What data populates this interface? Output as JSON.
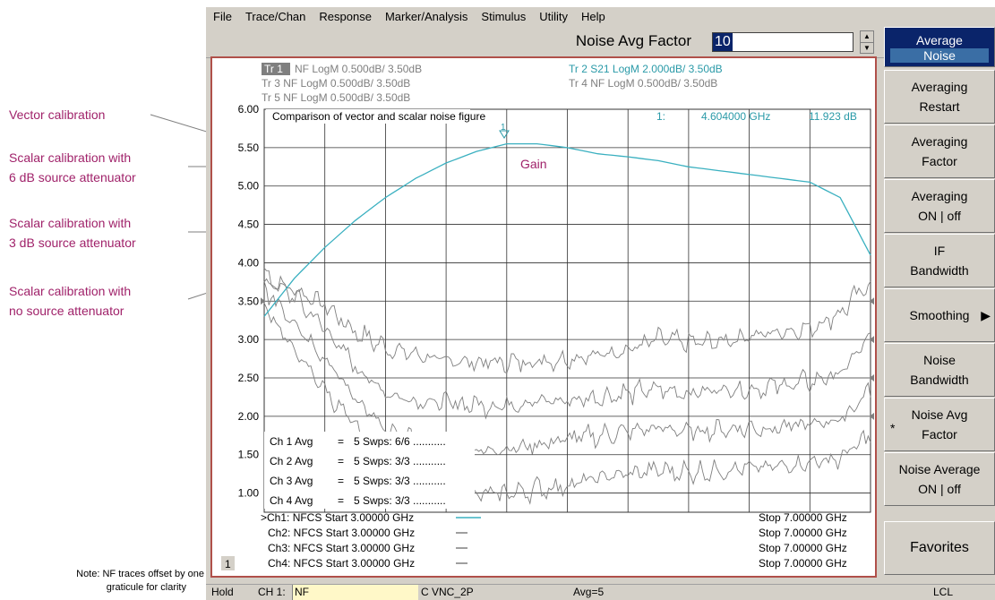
{
  "annotations": {
    "vector": "Vector calibration",
    "scalar6_line1": "Scalar calibration with",
    "scalar6_line2": "6 dB source attenuator",
    "scalar3_line1": "Scalar calibration with",
    "scalar3_line2": "3 dB source attenuator",
    "scalar0_line1": "Scalar calibration with",
    "scalar0_line2": "no source attenuator",
    "note_line1": "Note: NF traces offset by one",
    "note_line2": "graticule for clarity",
    "gain_label": "Gain"
  },
  "menu": [
    "File",
    "Trace/Chan",
    "Response",
    "Marker/Analysis",
    "Stimulus",
    "Utility",
    "Help"
  ],
  "entry": {
    "label": "Noise Avg Factor",
    "value": "10"
  },
  "traces": {
    "tr1_tag": "Tr 1",
    "tr1": "NF LogM 0.500dB/  3.50dB",
    "tr2": "Tr 2  S21 LogM 2.000dB/  3.50dB",
    "tr3": "Tr 3  NF LogM 0.500dB/  3.50dB",
    "tr4": "Tr 4  NF LogM 0.500dB/  3.50dB",
    "tr5": "Tr 5  NF LogM 0.500dB/  3.50dB"
  },
  "chart_title": "Comparison of vector and scalar noise figure",
  "marker": {
    "num": "1:",
    "freq": "4.604000 GHz",
    "value": "11.923 dB"
  },
  "averages": [
    {
      "label": "Ch 1 Avg",
      "eq": "=",
      "value": "5 Swps: 6/6 ..........."
    },
    {
      "label": "Ch 2 Avg",
      "eq": "=",
      "value": "5 Swps: 3/3 ..........."
    },
    {
      "label": "Ch 3 Avg",
      "eq": "=",
      "value": "5 Swps: 3/3 ..........."
    },
    {
      "label": "Ch 4 Avg",
      "eq": "=",
      "value": "5 Swps: 3/3 ..........."
    }
  ],
  "channels": [
    {
      "left": ">Ch1: NFCS Start  3.00000 GHz",
      "stop": "Stop  7.00000 GHz"
    },
    {
      "left": "Ch2: NFCS Start  3.00000 GHz",
      "stop": "Stop  7.00000 GHz"
    },
    {
      "left": "Ch3: NFCS Start  3.00000 GHz",
      "stop": "Stop  7.00000 GHz"
    },
    {
      "left": "Ch4: NFCS Start  3.00000 GHz",
      "stop": "Stop  7.00000 GHz"
    }
  ],
  "window_number": "1",
  "softkeys": [
    {
      "line1": "Average",
      "line2": "Noise",
      "title": true
    },
    {
      "line1": "Averaging",
      "line2": "Restart"
    },
    {
      "line1": "Averaging",
      "line2": "Factor"
    },
    {
      "line1": "Averaging",
      "line2": "ON | off"
    },
    {
      "line1": "IF",
      "line2": "Bandwidth"
    },
    {
      "line1": "Smoothing",
      "line2": ""
    },
    {
      "line1": "Noise",
      "line2": "Bandwidth"
    },
    {
      "line1": "Noise Avg",
      "line2": "Factor",
      "star": "*"
    },
    {
      "line1": "Noise Average",
      "line2": "ON | off"
    },
    {
      "line1": "Favorites",
      "line2": ""
    }
  ],
  "status": {
    "hold": "Hold",
    "ch": "CH 1:",
    "meas": "NF",
    "cal": "C  VNC_2P",
    "avg": "Avg=5",
    "lcl": "LCL"
  },
  "colors": {
    "gain_trace": "#3ab0c0",
    "nf_trace": "#7f7f7f",
    "annotation": "#a0226a",
    "frame": "#b0504a"
  },
  "chart_data": {
    "type": "line",
    "title": "Comparison of vector and scalar noise figure",
    "x_start_ghz": 3.0,
    "x_stop_ghz": 7.0,
    "y_tick_labels": [
      "6.00",
      "5.50",
      "5.00",
      "4.50",
      "4.00",
      "3.50",
      "3.00",
      "2.50",
      "2.00",
      "1.50",
      "1.00"
    ],
    "ylim": [
      0.75,
      6.0
    ],
    "grid": true,
    "series": [
      {
        "name": "Vector calibration",
        "x": [
          3.0,
          3.2,
          3.4,
          3.6,
          3.8,
          4.0,
          4.2,
          4.4,
          4.6,
          4.8,
          5.0,
          5.2,
          5.4,
          5.6,
          5.8,
          6.0,
          6.2,
          6.4,
          6.6,
          6.8,
          7.0
        ],
        "y": [
          2.0,
          1.9,
          1.7,
          1.35,
          1.15,
          1.05,
          0.98,
          0.95,
          0.95,
          0.97,
          1.0,
          1.05,
          1.12,
          1.25,
          1.2,
          1.22,
          1.3,
          1.35,
          1.4,
          1.6,
          2.0
        ],
        "offset": 1.75
      },
      {
        "name": "Scalar calibration with 6 dB source attenuator",
        "x": [
          3.0,
          3.2,
          3.4,
          3.6,
          3.8,
          4.0,
          4.2,
          4.4,
          4.6,
          4.8,
          5.0,
          5.2,
          5.4,
          5.6,
          5.8,
          6.0,
          6.2,
          6.4,
          6.6,
          6.8,
          7.0
        ],
        "y": [
          2.6,
          2.3,
          1.9,
          1.4,
          1.05,
          0.95,
          0.92,
          0.9,
          0.9,
          0.95,
          0.95,
          1.0,
          1.05,
          1.1,
          1.05,
          1.1,
          1.1,
          1.15,
          1.2,
          1.3,
          1.8
        ],
        "offset": 1.25
      },
      {
        "name": "Scalar calibration with 3 dB source attenuator",
        "x": [
          3.0,
          3.2,
          3.4,
          3.6,
          3.8,
          4.0,
          4.2,
          4.4,
          4.6,
          4.8,
          5.0,
          5.2,
          5.4,
          5.6,
          5.8,
          6.0,
          6.2,
          6.4,
          6.6,
          6.8,
          7.0
        ],
        "y": [
          2.9,
          2.5,
          2.0,
          1.5,
          1.05,
          0.9,
          0.85,
          0.8,
          0.82,
          0.88,
          0.95,
          1.0,
          1.05,
          1.1,
          1.05,
          1.08,
          1.1,
          1.1,
          1.15,
          1.2,
          1.6
        ],
        "offset": 0.75
      },
      {
        "name": "Scalar calibration with no source attenuator",
        "x": [
          3.0,
          3.2,
          3.4,
          3.6,
          3.8,
          4.0,
          4.2,
          4.4,
          4.6,
          4.8,
          5.0,
          5.2,
          5.4,
          5.6,
          5.8,
          6.0,
          6.2,
          6.4,
          6.6,
          6.8,
          7.0
        ],
        "y": [
          3.2,
          2.6,
          2.1,
          1.6,
          1.1,
          0.85,
          0.75,
          0.72,
          0.75,
          0.8,
          0.85,
          0.95,
          1.0,
          1.05,
          1.02,
          1.05,
          1.08,
          1.1,
          1.15,
          1.2,
          1.5
        ],
        "offset": 0.25
      },
      {
        "name": "Gain",
        "x": [
          3.0,
          3.2,
          3.4,
          3.6,
          3.8,
          4.0,
          4.2,
          4.4,
          4.6,
          4.8,
          5.0,
          5.2,
          5.4,
          5.6,
          5.8,
          6.0,
          6.2,
          6.4,
          6.6,
          6.8,
          7.0
        ],
        "y": [
          3.3,
          3.8,
          4.2,
          4.55,
          4.85,
          5.1,
          5.3,
          5.45,
          5.55,
          5.55,
          5.5,
          5.42,
          5.38,
          5.33,
          5.25,
          5.2,
          5.15,
          5.1,
          5.05,
          4.85,
          4.1
        ]
      }
    ]
  }
}
